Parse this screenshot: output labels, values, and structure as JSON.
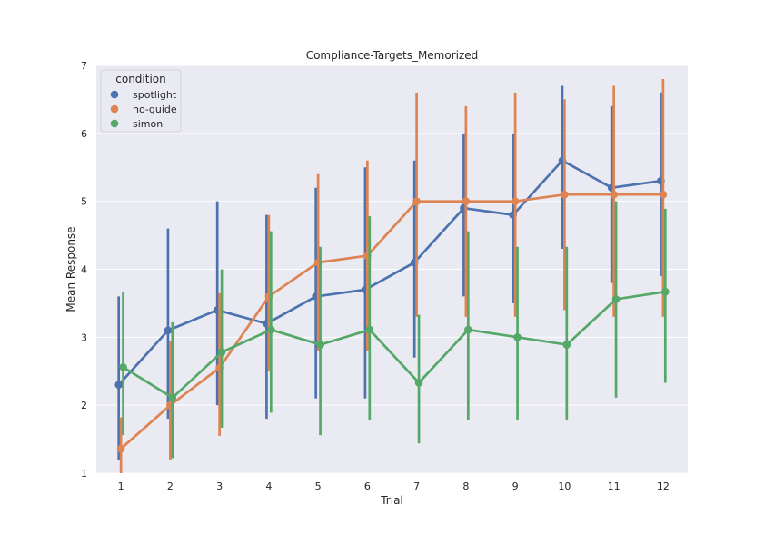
{
  "chart_data": {
    "type": "line",
    "title": "Compliance-Targets_Memorized",
    "xlabel": "Trial",
    "ylabel": "Mean Response",
    "categories": [
      "1",
      "2",
      "3",
      "4",
      "5",
      "6",
      "7",
      "8",
      "9",
      "10",
      "11",
      "12"
    ],
    "ylim": [
      1,
      7
    ],
    "yticks": [
      "1",
      "2",
      "3",
      "4",
      "5",
      "6",
      "7"
    ],
    "grid": true,
    "legend": {
      "title": "condition",
      "position": "top-left"
    },
    "error_bars": true,
    "series": [
      {
        "name": "spotlight",
        "color": "#4c72b0",
        "values": [
          2.3,
          3.1,
          3.4,
          3.2,
          3.6,
          3.7,
          4.1,
          4.9,
          4.8,
          5.6,
          5.2,
          5.3
        ],
        "ci_low": [
          1.2,
          1.8,
          2.0,
          1.8,
          2.1,
          2.1,
          2.7,
          3.6,
          3.5,
          4.3,
          3.8,
          3.9
        ],
        "ci_high": [
          3.6,
          4.6,
          5.0,
          4.8,
          5.2,
          5.5,
          5.6,
          6.0,
          6.0,
          6.7,
          6.4,
          6.6
        ]
      },
      {
        "name": "no-guide",
        "color": "#dd8452",
        "values": [
          1.36,
          2.0,
          2.55,
          3.6,
          4.1,
          4.2,
          5.0,
          5.0,
          5.0,
          5.1,
          5.1,
          5.1
        ],
        "ci_low": [
          1.0,
          1.2,
          1.55,
          2.5,
          2.8,
          2.8,
          3.3,
          3.3,
          3.3,
          3.4,
          3.3,
          3.3
        ],
        "ci_high": [
          1.82,
          2.95,
          3.65,
          4.8,
          5.4,
          5.6,
          6.6,
          6.4,
          6.6,
          6.5,
          6.7,
          6.8
        ]
      },
      {
        "name": "simon",
        "color": "#55a868",
        "values": [
          2.56,
          2.11,
          2.78,
          3.11,
          2.89,
          3.11,
          2.33,
          3.11,
          3.0,
          2.89,
          3.56,
          3.67
        ],
        "ci_low": [
          1.56,
          1.22,
          1.67,
          1.89,
          1.56,
          1.78,
          1.44,
          1.78,
          1.78,
          1.78,
          2.11,
          2.33
        ],
        "ci_high": [
          3.67,
          3.22,
          4.0,
          4.56,
          4.33,
          4.78,
          3.33,
          4.56,
          4.33,
          4.33,
          5.0,
          4.89
        ]
      }
    ]
  }
}
